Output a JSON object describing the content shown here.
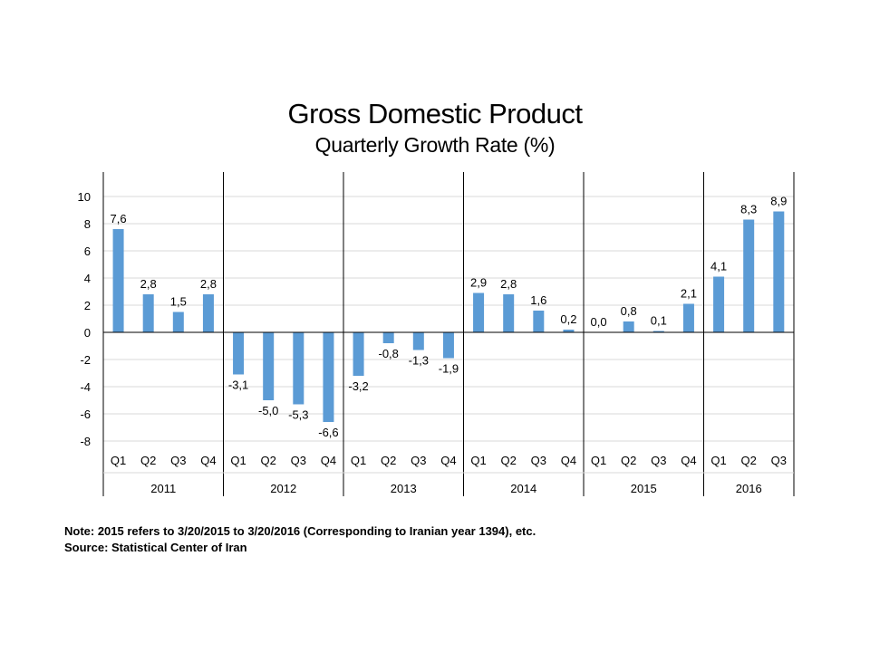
{
  "chart_data": {
    "type": "bar",
    "title": "Gross Domestic Product",
    "subtitle": "Quarterly Growth Rate (%)",
    "xlabel": "",
    "ylabel": "",
    "ylim": [
      -8,
      10
    ],
    "y_ticks": [
      10,
      8,
      6,
      4,
      2,
      0,
      -2,
      -4,
      -6,
      -8
    ],
    "grid": true,
    "legend": "none",
    "bar_color": "#5b9bd5",
    "groups": [
      {
        "year": "2011",
        "quarters": [
          "Q1",
          "Q2",
          "Q3",
          "Q4"
        ],
        "values": [
          7.6,
          2.8,
          1.5,
          2.8
        ],
        "labels": [
          "7,6",
          "2,8",
          "1,5",
          "2,8"
        ]
      },
      {
        "year": "2012",
        "quarters": [
          "Q1",
          "Q2",
          "Q3",
          "Q4"
        ],
        "values": [
          -3.1,
          -5.0,
          -5.3,
          -6.6
        ],
        "labels": [
          "-3,1",
          "-5,0",
          "-5,3",
          "-6,6"
        ]
      },
      {
        "year": "2013",
        "quarters": [
          "Q1",
          "Q2",
          "Q3",
          "Q4"
        ],
        "values": [
          -3.2,
          -0.8,
          -1.3,
          -1.9
        ],
        "labels": [
          "-3,2",
          "-0,8",
          "-1,3",
          "-1,9"
        ]
      },
      {
        "year": "2014",
        "quarters": [
          "Q1",
          "Q2",
          "Q3",
          "Q4"
        ],
        "values": [
          2.9,
          2.8,
          1.6,
          0.2
        ],
        "labels": [
          "2,9",
          "2,8",
          "1,6",
          "0,2"
        ]
      },
      {
        "year": "2015",
        "quarters": [
          "Q1",
          "Q2",
          "Q3",
          "Q4"
        ],
        "values": [
          0.0,
          0.8,
          0.1,
          2.1
        ],
        "labels": [
          "0,0",
          "0,8",
          "0,1",
          "2,1"
        ]
      },
      {
        "year": "2016",
        "quarters": [
          "Q1",
          "Q2",
          "Q3"
        ],
        "values": [
          4.1,
          8.3,
          8.9
        ],
        "labels": [
          "4,1",
          "8,3",
          "8,9"
        ]
      }
    ]
  },
  "notes": {
    "note": "Note: 2015 refers to 3/20/2015 to 3/20/2016 (Corresponding to Iranian year 1394), etc.",
    "source": "Source: Statistical Center of Iran"
  }
}
